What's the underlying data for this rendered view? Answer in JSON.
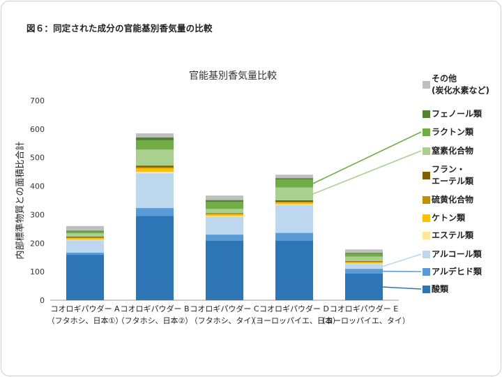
{
  "figure_caption": "図６：同定された成分の官能基別香気量の比較",
  "colors": {
    "acid": "#2e75b6",
    "aldehyde": "#5b9bd5",
    "alcohol": "#bdd7ee",
    "ester": "#ffe699",
    "ketone": "#ffc000",
    "sulfur": "#bf9000",
    "furan_ether": "#7f6000",
    "nitrogen": "#a9d08e",
    "lactone": "#70ad47",
    "phenol": "#548235",
    "other": "#bfbfbf",
    "axis": "#999999",
    "grid": "#d9d9d9"
  },
  "chart_data": {
    "type": "bar",
    "stacked": true,
    "title": "官能基別香気量比較",
    "xlabel": "",
    "ylabel": "内部標準物質との面積比合計",
    "ylim": [
      0,
      700
    ],
    "yticks": [
      0,
      100,
      200,
      300,
      400,
      500,
      600,
      700
    ],
    "grid": false,
    "legend_position": "right",
    "categories": [
      [
        "コオロギパウダー A",
        "（フタホシ、日本①）"
      ],
      [
        "コオロギパウダー B",
        "（フタホシ、日本②）"
      ],
      [
        "コオロギパウダー C",
        "（フタホシ、タイ）"
      ],
      [
        "コオロギパウダー D",
        "（ヨーロッパイエ、日本）"
      ],
      [
        "コオロギパウダー E",
        "（ヨーロッパイエ、タイ）"
      ]
    ],
    "series": [
      {
        "name": "酸類",
        "color": "acid",
        "values": [
          159,
          295,
          208,
          209,
          93
        ]
      },
      {
        "name": "アルデヒド類",
        "color": "aldehyde",
        "values": [
          8,
          28,
          22,
          27,
          17
        ]
      },
      {
        "name": "アルコール類",
        "color": "alcohol",
        "values": [
          43,
          122,
          62,
          97,
          17
        ]
      },
      {
        "name": "エステル類",
        "color": "ester",
        "values": [
          3,
          5,
          3,
          3,
          2
        ]
      },
      {
        "name": "ケトン類",
        "color": "ketone",
        "values": [
          5,
          12,
          6,
          6,
          4
        ]
      },
      {
        "name": "硫黄化合物",
        "color": "sulfur",
        "values": [
          2,
          4,
          2,
          3,
          2
        ]
      },
      {
        "name": [
          "フラン・",
          "エーテル類"
        ],
        "color": "furan_ether",
        "values": [
          3,
          6,
          2,
          5,
          2
        ]
      },
      {
        "name": "窒素化合物",
        "color": "nitrogen",
        "values": [
          12,
          56,
          15,
          45,
          16
        ]
      },
      {
        "name": "ラクトン類",
        "color": "lactone",
        "values": [
          6,
          32,
          25,
          28,
          9
        ]
      },
      {
        "name": "フェノール類",
        "color": "phenol",
        "values": [
          3,
          11,
          6,
          5,
          4
        ]
      },
      {
        "name": [
          "その他",
          "(炭化水素など)"
        ],
        "color": "other",
        "values": [
          16,
          14,
          16,
          12,
          12
        ]
      }
    ]
  }
}
